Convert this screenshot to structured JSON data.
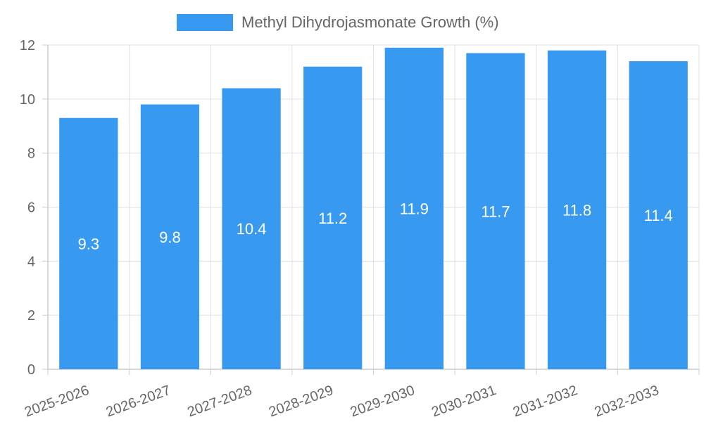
{
  "chart_data": {
    "type": "bar",
    "categories": [
      "2025-2026",
      "2026-2027",
      "2027-2028",
      "2028-2029",
      "2029-2030",
      "2030-2031",
      "2031-2032",
      "2032-2033"
    ],
    "series": [
      {
        "name": "Methyl Dihydrojasmonate Growth (%)",
        "values": [
          9.3,
          9.8,
          10.4,
          11.2,
          11.9,
          11.7,
          11.8,
          11.4
        ],
        "color": "#3899f0"
      }
    ],
    "title": "",
    "xlabel": "",
    "ylabel": "",
    "ylim": [
      0,
      12
    ],
    "yticks": [
      0,
      2,
      4,
      6,
      8,
      10,
      12
    ],
    "grid": true,
    "legend_position": "top-center"
  }
}
